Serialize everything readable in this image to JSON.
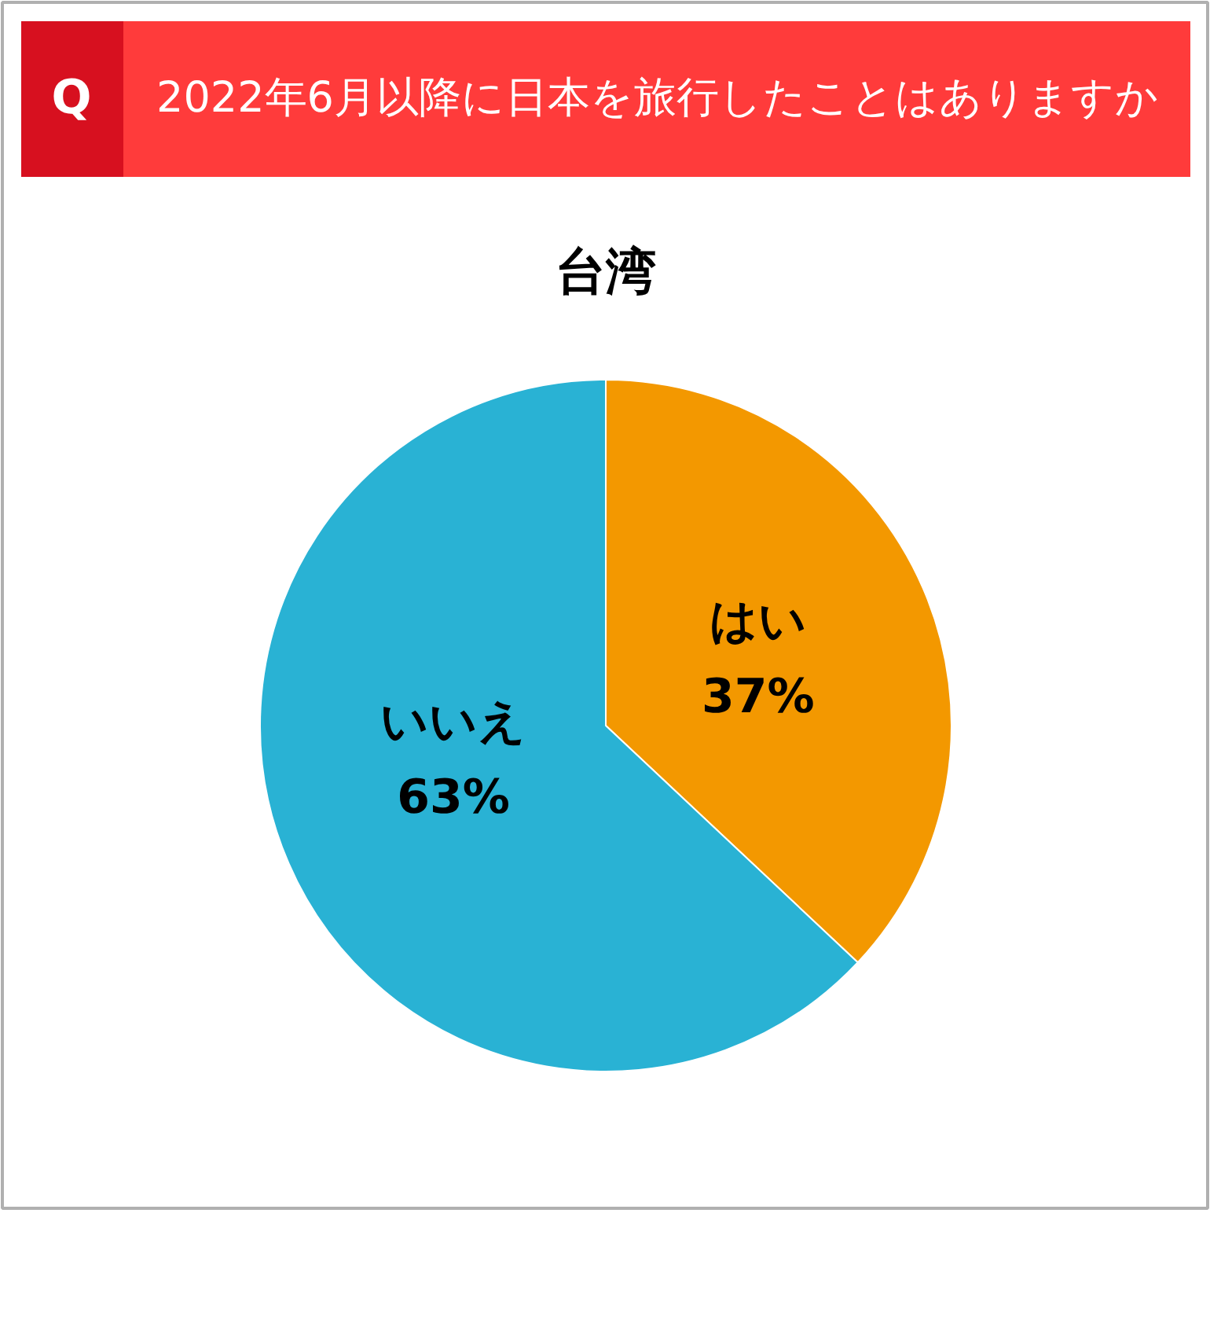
{
  "chart_data": {
    "type": "pie",
    "title": "2022年6月以降に日本を旅行したことはありますか",
    "subtitle": "台湾",
    "annotations": [
      "Q"
    ],
    "categories": [
      "はい",
      "いいえ"
    ],
    "values": [
      37,
      63
    ],
    "colors": [
      "#f39800",
      "#29b2d4"
    ],
    "value_labels": [
      "37%",
      "63%"
    ]
  }
}
